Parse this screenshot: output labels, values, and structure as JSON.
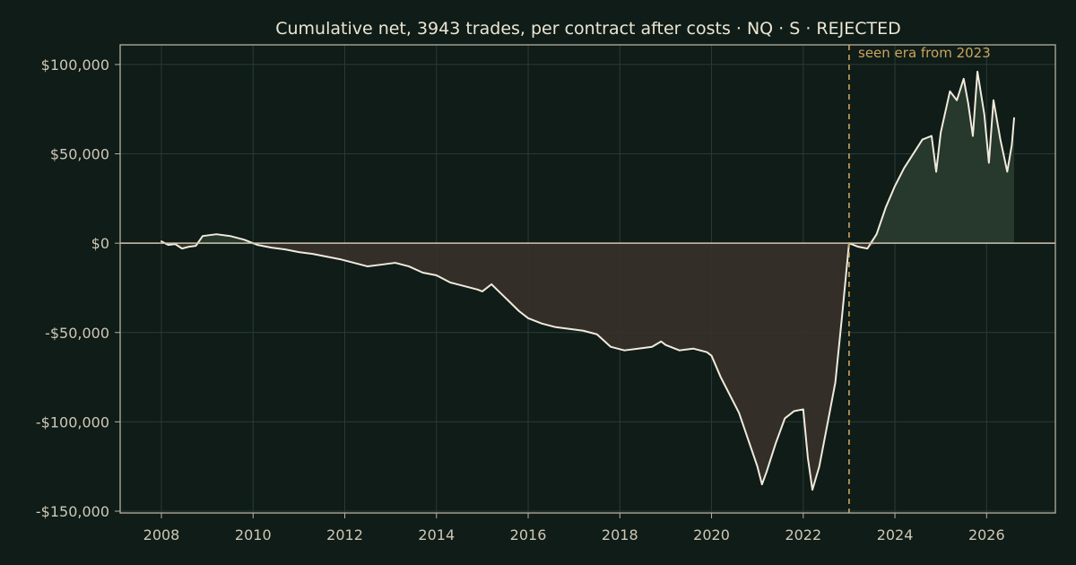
{
  "chart_data": {
    "type": "area",
    "title": "Cumulative net, 3943 trades, per contract after costs  ·  NQ · S · REJECTED",
    "xlabel": "",
    "ylabel": "",
    "xlim": [
      2007.1,
      2027.5
    ],
    "ylim": [
      -151000,
      111000
    ],
    "x_ticks": [
      2008,
      2010,
      2012,
      2014,
      2016,
      2018,
      2020,
      2022,
      2024,
      2026
    ],
    "y_ticks": [
      {
        "value": 100000,
        "label": "$100,000"
      },
      {
        "value": 50000,
        "label": "$50,000"
      },
      {
        "value": 0,
        "label": "$0"
      },
      {
        "value": -50000,
        "label": "-$50,000"
      },
      {
        "value": -100000,
        "label": "-$100,000"
      },
      {
        "value": -150000,
        "label": "-$150,000"
      }
    ],
    "grid": true,
    "legend": "none",
    "annotation": {
      "text": "seen era from 2023",
      "x": 2023.0
    },
    "series": [
      {
        "values_x": [
          2008.0,
          2008.15,
          2008.3,
          2008.45,
          2008.6,
          2008.75,
          2008.9,
          2009.2,
          2009.5,
          2009.8,
          2010.1,
          2010.4,
          2010.7,
          2011.0,
          2011.3,
          2011.6,
          2011.9,
          2012.2,
          2012.5,
          2012.8,
          2013.1,
          2013.4,
          2013.7,
          2014.0,
          2014.3,
          2014.6,
          2014.9,
          2015.0,
          2015.2,
          2015.4,
          2015.6,
          2015.8,
          2016.0,
          2016.3,
          2016.6,
          2016.9,
          2017.2,
          2017.5,
          2017.8,
          2018.1,
          2018.4,
          2018.7,
          2018.9,
          2019.0,
          2019.3,
          2019.6,
          2019.9,
          2020.0,
          2020.2,
          2020.4,
          2020.6,
          2020.8,
          2021.0,
          2021.1,
          2021.2,
          2021.4,
          2021.6,
          2021.8,
          2022.0,
          2022.1,
          2022.2,
          2022.35,
          2022.5,
          2022.7,
          2022.85,
          2023.0,
          2023.2,
          2023.4,
          2023.6,
          2023.8,
          2024.0,
          2024.2,
          2024.4,
          2024.6,
          2024.8,
          2024.9,
          2025.0,
          2025.2,
          2025.35,
          2025.5,
          2025.6,
          2025.7,
          2025.8,
          2025.95,
          2026.05,
          2026.15,
          2026.3,
          2026.45,
          2026.55,
          2026.6
        ],
        "values_y": [
          1000,
          -1000,
          -500,
          -3000,
          -2000,
          -1500,
          4000,
          5000,
          4000,
          2000,
          -1000,
          -2500,
          -3500,
          -5000,
          -6000,
          -7500,
          -9000,
          -11000,
          -13000,
          -12000,
          -11000,
          -13000,
          -16500,
          -18000,
          -22000,
          -24000,
          -26000,
          -27000,
          -23000,
          -28000,
          -33000,
          -38000,
          -42000,
          -45000,
          -47000,
          -48000,
          -49000,
          -51000,
          -58000,
          -60000,
          -59000,
          -58000,
          -55000,
          -57000,
          -60000,
          -59000,
          -61000,
          -63000,
          -75000,
          -85000,
          -95000,
          -110000,
          -125000,
          -135000,
          -128000,
          -112000,
          -98000,
          -94000,
          -93000,
          -120000,
          -138000,
          -125000,
          -105000,
          -78000,
          -40000,
          0,
          -2000,
          -3000,
          5000,
          20000,
          32000,
          42000,
          50000,
          58000,
          60000,
          40000,
          62000,
          85000,
          80000,
          92000,
          78000,
          60000,
          96000,
          72000,
          45000,
          80000,
          58000,
          40000,
          55000,
          70000
        ]
      }
    ]
  }
}
